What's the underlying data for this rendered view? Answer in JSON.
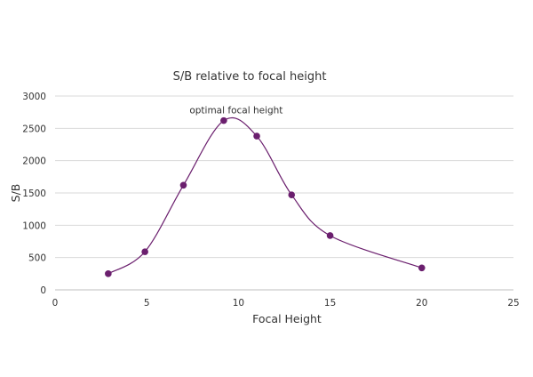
{
  "chart_data": {
    "type": "scatter",
    "title": "S/B relative to focal height",
    "xlabel": "Focal Height",
    "ylabel": "S/B",
    "xlim": [
      0,
      25
    ],
    "ylim": [
      0,
      3000
    ],
    "xticks": [
      0,
      5,
      10,
      15,
      20,
      25
    ],
    "yticks": [
      0,
      500,
      1000,
      1500,
      2000,
      2500,
      3000
    ],
    "grid": "horizontal",
    "legend": "none",
    "smooth_line": true,
    "series": [
      {
        "x": [
          2.9,
          4.9,
          7.0,
          9.2,
          11.0,
          12.9,
          15.0,
          20.0
        ],
        "y": [
          250,
          590,
          1620,
          2620,
          2380,
          1470,
          840,
          340
        ]
      }
    ],
    "annotations": [
      {
        "text": "optimal focal height",
        "x": 9.2,
        "y": 2620
      }
    ],
    "colors": {
      "series": "#6b1f6e",
      "grid": "#d9d9d9",
      "axis": "#bfbfbf",
      "text": "#333333"
    }
  }
}
